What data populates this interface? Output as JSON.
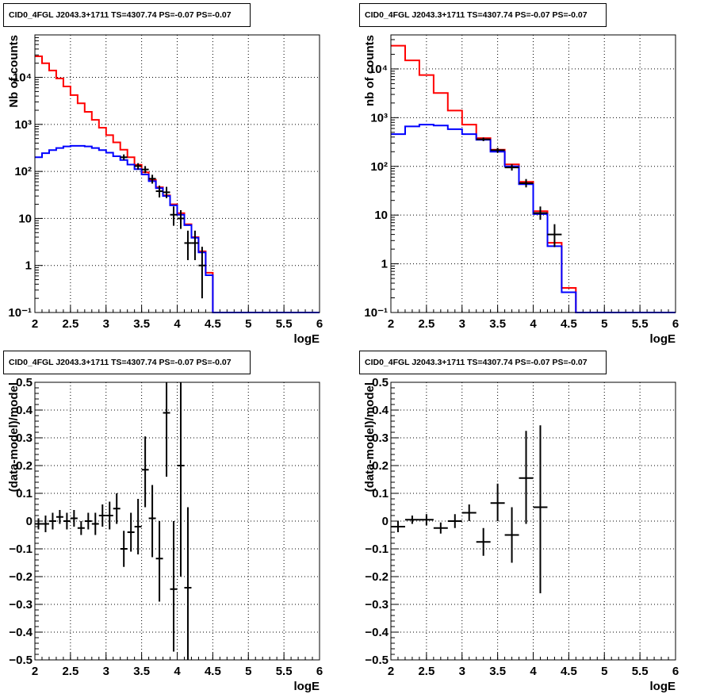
{
  "chart_data": [
    {
      "type": "step-histogram",
      "title": "CID0_4FGL J2043.3+1711 TS=4307.74 PS=-0.07 PS=-0.07",
      "xlabel": "logE",
      "ylabel": "Nb of counts",
      "xlim": [
        2,
        6
      ],
      "ylim": [
        0.1,
        80000
      ],
      "yscale": "log",
      "grid": true,
      "xticks": [
        "2",
        "2.5",
        "3",
        "3.5",
        "4",
        "4.5",
        "5",
        "5.5",
        "6"
      ],
      "yticks": [
        {
          "value": 0.1,
          "label": "10⁻¹"
        },
        {
          "value": 1,
          "label": "1"
        },
        {
          "value": 10,
          "label": "10"
        },
        {
          "value": 100,
          "label": "10²"
        },
        {
          "value": 1000,
          "label": "10³"
        },
        {
          "value": 10000,
          "label": "10⁴"
        }
      ],
      "bin_edges": [
        2.0,
        2.1,
        2.2,
        2.3,
        2.4,
        2.5,
        2.6,
        2.7,
        2.8,
        2.9,
        3.0,
        3.1,
        3.2,
        3.3,
        3.4,
        3.5,
        3.6,
        3.7,
        3.8,
        3.9,
        4.0,
        4.1,
        4.2,
        4.3,
        4.4,
        4.5,
        4.6,
        4.7,
        4.8,
        4.9,
        5.0,
        5.1,
        5.2,
        5.3,
        5.4,
        5.5,
        5.6,
        5.7,
        5.8,
        5.9,
        6.0
      ],
      "series": [
        {
          "color": "#ff0000",
          "values": [
            28000,
            20000,
            14000,
            9500,
            6400,
            4200,
            2800,
            1850,
            1250,
            850,
            590,
            415,
            290,
            200,
            138,
            96,
            66,
            46,
            31,
            20,
            13,
            7.5,
            4.0,
            2.0,
            0.7,
            0.1,
            0.1,
            0.1,
            0.1,
            0.1,
            0.1,
            0.1,
            0.1,
            0.1,
            0.1,
            0.1,
            0.1,
            0.1,
            0.1,
            0.1
          ]
        },
        {
          "color": "#0000ff",
          "values": [
            200,
            245,
            285,
            315,
            340,
            350,
            350,
            340,
            315,
            285,
            250,
            210,
            175,
            140,
            112,
            86,
            62,
            44,
            30,
            19,
            12,
            7.2,
            3.9,
            1.9,
            0.62,
            0.1,
            0.1,
            0.1,
            0.1,
            0.1,
            0.1,
            0.1,
            0.1,
            0.1,
            0.1,
            0.1,
            0.1,
            0.1,
            0.1,
            0.1
          ]
        }
      ],
      "points": [
        {
          "x": 3.25,
          "y": 200,
          "ylo": 175,
          "yhi": 230
        },
        {
          "x": 3.45,
          "y": 130,
          "ylo": 110,
          "yhi": 150
        },
        {
          "x": 3.55,
          "y": 110,
          "ylo": 92,
          "yhi": 130
        },
        {
          "x": 3.65,
          "y": 70,
          "ylo": 55,
          "yhi": 85
        },
        {
          "x": 3.75,
          "y": 38,
          "ylo": 28,
          "yhi": 50
        },
        {
          "x": 3.85,
          "y": 36,
          "ylo": 27,
          "yhi": 47
        },
        {
          "x": 3.95,
          "y": 12,
          "ylo": 7,
          "yhi": 18
        },
        {
          "x": 4.05,
          "y": 10,
          "ylo": 6,
          "yhi": 15
        },
        {
          "x": 4.15,
          "y": 3,
          "ylo": 1.3,
          "yhi": 5.5
        },
        {
          "x": 4.25,
          "y": 3,
          "ylo": 1.3,
          "yhi": 5.5
        },
        {
          "x": 4.35,
          "y": 1,
          "ylo": 0.2,
          "yhi": 2.5
        }
      ]
    },
    {
      "type": "step-histogram",
      "title": "CID0_4FGL J2043.3+1711 TS=4307.74 PS=-0.07 PS=-0.07",
      "xlabel": "logE",
      "ylabel": "nb of counts",
      "xlim": [
        2,
        6
      ],
      "ylim": [
        0.1,
        50000
      ],
      "yscale": "log",
      "grid": true,
      "xticks": [
        "2",
        "2.5",
        "3",
        "3.5",
        "4",
        "4.5",
        "5",
        "5.5",
        "6"
      ],
      "yticks": [
        {
          "value": 0.1,
          "label": "10⁻¹"
        },
        {
          "value": 1,
          "label": "1"
        },
        {
          "value": 10,
          "label": "10"
        },
        {
          "value": 100,
          "label": "10²"
        },
        {
          "value": 1000,
          "label": "10³"
        },
        {
          "value": 10000,
          "label": "10⁴"
        }
      ],
      "bin_edges": [
        2.0,
        2.2,
        2.4,
        2.6,
        2.8,
        3.0,
        3.2,
        3.4,
        3.6,
        3.8,
        4.0,
        4.2,
        4.4,
        4.6,
        4.8,
        5.0,
        5.2,
        5.4,
        5.6,
        5.8,
        6.0
      ],
      "series": [
        {
          "color": "#ff0000",
          "values": [
            30000,
            15000,
            7500,
            3200,
            1400,
            720,
            380,
            220,
            110,
            48,
            12,
            2.7,
            0.32,
            0.1,
            0.1,
            0.1,
            0.1,
            0.1,
            0.1,
            0.1
          ]
        },
        {
          "color": "#0000ff",
          "values": [
            460,
            660,
            720,
            690,
            580,
            460,
            350,
            200,
            100,
            43,
            10.5,
            2.3,
            0.26,
            0.1,
            0.1,
            0.1,
            0.1,
            0.1,
            0.1,
            0.1
          ]
        }
      ],
      "points": [
        {
          "x": 3.3,
          "y": 360,
          "ylo": 330,
          "yhi": 390
        },
        {
          "x": 3.5,
          "y": 215,
          "ylo": 190,
          "yhi": 240
        },
        {
          "x": 3.7,
          "y": 95,
          "ylo": 82,
          "yhi": 110
        },
        {
          "x": 3.9,
          "y": 45,
          "ylo": 37,
          "yhi": 55
        },
        {
          "x": 4.1,
          "y": 11,
          "ylo": 8,
          "yhi": 15
        },
        {
          "x": 4.3,
          "y": 4,
          "ylo": 2.2,
          "yhi": 6.5
        }
      ]
    },
    {
      "type": "scatter-errorbar",
      "title": "CID0_4FGL J2043.3+1711 TS=4307.74 PS=-0.07 PS=-0.07",
      "xlabel": "logE",
      "ylabel": "(data-model)/model",
      "xlim": [
        2,
        6
      ],
      "ylim": [
        -0.5,
        0.5
      ],
      "grid": true,
      "xticks": [
        "2",
        "2.5",
        "3",
        "3.5",
        "4",
        "4.5",
        "5",
        "5.5",
        "6"
      ],
      "yticks": [
        "−0.5",
        "−0.4",
        "−0.3",
        "−0.2",
        "−0.1",
        "0",
        "0.1",
        "0.2",
        "0.3",
        "0.4",
        "0.5"
      ],
      "points": [
        {
          "x": 2.05,
          "y": -0.01,
          "xerr": 0.05,
          "ylo": -0.03,
          "yhi": 0.01
        },
        {
          "x": 2.15,
          "y": -0.01,
          "xerr": 0.05,
          "ylo": -0.04,
          "yhi": 0.02
        },
        {
          "x": 2.25,
          "y": 0.0,
          "xerr": 0.05,
          "ylo": -0.03,
          "yhi": 0.03
        },
        {
          "x": 2.35,
          "y": 0.015,
          "xerr": 0.05,
          "ylo": -0.01,
          "yhi": 0.04
        },
        {
          "x": 2.45,
          "y": 0.0,
          "xerr": 0.05,
          "ylo": -0.03,
          "yhi": 0.03
        },
        {
          "x": 2.55,
          "y": 0.01,
          "xerr": 0.05,
          "ylo": -0.02,
          "yhi": 0.04
        },
        {
          "x": 2.65,
          "y": -0.025,
          "xerr": 0.05,
          "ylo": -0.05,
          "yhi": 0.0
        },
        {
          "x": 2.75,
          "y": 0.0,
          "xerr": 0.05,
          "ylo": -0.03,
          "yhi": 0.03
        },
        {
          "x": 2.85,
          "y": -0.01,
          "xerr": 0.05,
          "ylo": -0.05,
          "yhi": 0.03
        },
        {
          "x": 2.95,
          "y": 0.02,
          "xerr": 0.05,
          "ylo": -0.02,
          "yhi": 0.06
        },
        {
          "x": 3.05,
          "y": 0.02,
          "xerr": 0.05,
          "ylo": -0.03,
          "yhi": 0.07
        },
        {
          "x": 3.15,
          "y": 0.045,
          "xerr": 0.05,
          "ylo": -0.01,
          "yhi": 0.1
        },
        {
          "x": 3.25,
          "y": -0.1,
          "xerr": 0.05,
          "ylo": -0.165,
          "yhi": -0.035
        },
        {
          "x": 3.35,
          "y": -0.04,
          "xerr": 0.05,
          "ylo": -0.11,
          "yhi": 0.03
        },
        {
          "x": 3.45,
          "y": -0.02,
          "xerr": 0.05,
          "ylo": -0.12,
          "yhi": 0.08
        },
        {
          "x": 3.55,
          "y": 0.185,
          "xerr": 0.05,
          "ylo": 0.05,
          "yhi": 0.305
        },
        {
          "x": 3.65,
          "y": 0.01,
          "xerr": 0.05,
          "ylo": -0.13,
          "yhi": 0.13
        },
        {
          "x": 3.75,
          "y": -0.135,
          "xerr": 0.05,
          "ylo": -0.29,
          "yhi": 0.0
        },
        {
          "x": 3.85,
          "y": 0.39,
          "xerr": 0.05,
          "ylo": 0.16,
          "yhi": 0.5
        },
        {
          "x": 3.95,
          "y": -0.245,
          "xerr": 0.05,
          "ylo": -0.47,
          "yhi": 0.0
        },
        {
          "x": 4.05,
          "y": 0.2,
          "xerr": 0.05,
          "ylo": -0.2,
          "yhi": 0.5
        },
        {
          "x": 4.15,
          "y": -0.24,
          "xerr": 0.05,
          "ylo": -0.5,
          "yhi": 0.05
        }
      ]
    },
    {
      "type": "scatter-errorbar",
      "title": "CID0_4FGL J2043.3+1711 TS=4307.74 PS=-0.07 PS=-0.07",
      "xlabel": "logE",
      "ylabel": "(data-model)/model",
      "xlim": [
        2,
        6
      ],
      "ylim": [
        -0.5,
        0.5
      ],
      "grid": true,
      "xticks": [
        "2",
        "2.5",
        "3",
        "3.5",
        "4",
        "4.5",
        "5",
        "5.5",
        "6"
      ],
      "yticks": [
        "−0.5",
        "−0.4",
        "−0.3",
        "−0.2",
        "−0.1",
        "0",
        "0.1",
        "0.2",
        "0.3",
        "0.4",
        "0.5"
      ],
      "points": [
        {
          "x": 2.1,
          "y": -0.02,
          "xerr": 0.1,
          "ylo": -0.04,
          "yhi": 0.0
        },
        {
          "x": 2.3,
          "y": 0.005,
          "xerr": 0.1,
          "ylo": -0.01,
          "yhi": 0.02
        },
        {
          "x": 2.5,
          "y": 0.005,
          "xerr": 0.1,
          "ylo": -0.015,
          "yhi": 0.025
        },
        {
          "x": 2.7,
          "y": -0.025,
          "xerr": 0.1,
          "ylo": -0.045,
          "yhi": -0.005
        },
        {
          "x": 2.9,
          "y": 0.0,
          "xerr": 0.1,
          "ylo": -0.025,
          "yhi": 0.025
        },
        {
          "x": 3.1,
          "y": 0.03,
          "xerr": 0.1,
          "ylo": 0.0,
          "yhi": 0.06
        },
        {
          "x": 3.3,
          "y": -0.075,
          "xerr": 0.1,
          "ylo": -0.125,
          "yhi": -0.025
        },
        {
          "x": 3.5,
          "y": 0.065,
          "xerr": 0.1,
          "ylo": 0.0,
          "yhi": 0.135
        },
        {
          "x": 3.7,
          "y": -0.05,
          "xerr": 0.1,
          "ylo": -0.15,
          "yhi": 0.05
        },
        {
          "x": 3.9,
          "y": 0.155,
          "xerr": 0.1,
          "ylo": -0.01,
          "yhi": 0.325
        },
        {
          "x": 4.1,
          "y": 0.05,
          "xerr": 0.1,
          "ylo": -0.26,
          "yhi": 0.345
        }
      ]
    }
  ]
}
